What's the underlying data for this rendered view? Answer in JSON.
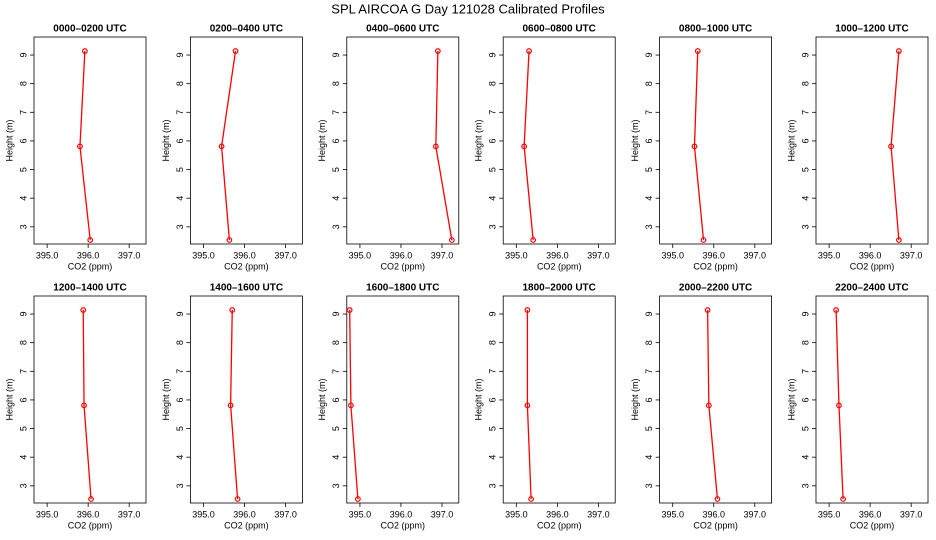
{
  "title": "SPL AIRCOA G  Day 121028  Calibrated Profiles",
  "chart_data": [
    {
      "type": "line",
      "title": "0000–0200 UTC",
      "xlabel": "CO2 (ppm)",
      "ylabel": "Height (m)",
      "color": "#ff0000",
      "x": [
        395.92,
        395.8,
        396.05
      ],
      "values": [
        9.14,
        5.81,
        2.54
      ],
      "xlim": [
        394.68,
        397.41
      ],
      "ylim": [
        2.4,
        9.63
      ],
      "xticks": [
        {
          "value": 395,
          "label": "395.0"
        },
        {
          "value": 396,
          "label": "396.0"
        },
        {
          "value": 397,
          "label": "397.0"
        }
      ],
      "yticks": [
        3,
        4,
        5,
        6,
        7,
        8,
        9
      ]
    },
    {
      "type": "line",
      "title": "0200–0400 UTC",
      "xlabel": "CO2 (ppm)",
      "ylabel": "Height (m)",
      "color": "#ff0000",
      "x": [
        395.78,
        395.44,
        395.63
      ],
      "values": [
        9.14,
        5.81,
        2.54
      ],
      "xlim": [
        394.68,
        397.41
      ],
      "ylim": [
        2.4,
        9.63
      ],
      "xticks": [
        {
          "value": 395,
          "label": "395.0"
        },
        {
          "value": 396,
          "label": "396.0"
        },
        {
          "value": 397,
          "label": "397.0"
        }
      ],
      "yticks": [
        3,
        4,
        5,
        6,
        7,
        8,
        9
      ]
    },
    {
      "type": "line",
      "title": "0400–0600 UTC",
      "xlabel": "CO2 (ppm)",
      "ylabel": "Height (m)",
      "color": "#ff0000",
      "x": [
        396.9,
        396.85,
        397.24
      ],
      "values": [
        9.14,
        5.81,
        2.54
      ],
      "xlim": [
        394.68,
        397.41
      ],
      "ylim": [
        2.4,
        9.63
      ],
      "xticks": [
        {
          "value": 395,
          "label": "395.0"
        },
        {
          "value": 396,
          "label": "396.0"
        },
        {
          "value": 397,
          "label": "397.0"
        }
      ],
      "yticks": [
        3,
        4,
        5,
        6,
        7,
        8,
        9
      ]
    },
    {
      "type": "line",
      "title": "0600–0800 UTC",
      "xlabel": "CO2 (ppm)",
      "ylabel": "Height (m)",
      "color": "#ff0000",
      "x": [
        395.31,
        395.19,
        395.41
      ],
      "values": [
        9.14,
        5.81,
        2.54
      ],
      "xlim": [
        394.68,
        397.41
      ],
      "ylim": [
        2.4,
        9.63
      ],
      "xticks": [
        {
          "value": 395,
          "label": "395.0"
        },
        {
          "value": 396,
          "label": "396.0"
        },
        {
          "value": 397,
          "label": "397.0"
        }
      ],
      "yticks": [
        3,
        4,
        5,
        6,
        7,
        8,
        9
      ]
    },
    {
      "type": "line",
      "title": "0800–1000 UTC",
      "xlabel": "CO2 (ppm)",
      "ylabel": "Height (m)",
      "color": "#ff0000",
      "x": [
        395.61,
        395.53,
        395.75
      ],
      "values": [
        9.14,
        5.81,
        2.54
      ],
      "xlim": [
        394.68,
        397.41
      ],
      "ylim": [
        2.4,
        9.63
      ],
      "xticks": [
        {
          "value": 395,
          "label": "395.0"
        },
        {
          "value": 396,
          "label": "396.0"
        },
        {
          "value": 397,
          "label": "397.0"
        }
      ],
      "yticks": [
        3,
        4,
        5,
        6,
        7,
        8,
        9
      ]
    },
    {
      "type": "line",
      "title": "1000–1200 UTC",
      "xlabel": "CO2 (ppm)",
      "ylabel": "Height (m)",
      "color": "#ff0000",
      "x": [
        396.7,
        396.51,
        396.7
      ],
      "values": [
        9.14,
        5.81,
        2.54
      ],
      "xlim": [
        394.68,
        397.41
      ],
      "ylim": [
        2.4,
        9.63
      ],
      "xticks": [
        {
          "value": 395,
          "label": "395.0"
        },
        {
          "value": 396,
          "label": "396.0"
        },
        {
          "value": 397,
          "label": "397.0"
        }
      ],
      "yticks": [
        3,
        4,
        5,
        6,
        7,
        8,
        9
      ]
    },
    {
      "type": "line",
      "title": "1200–1400 UTC",
      "xlabel": "CO2 (ppm)",
      "ylabel": "Height (m)",
      "color": "#ff0000",
      "x": [
        395.88,
        395.9,
        396.07
      ],
      "values": [
        9.14,
        5.81,
        2.54
      ],
      "xlim": [
        394.68,
        397.41
      ],
      "ylim": [
        2.4,
        9.63
      ],
      "xticks": [
        {
          "value": 395,
          "label": "395.0"
        },
        {
          "value": 396,
          "label": "396.0"
        },
        {
          "value": 397,
          "label": "397.0"
        }
      ],
      "yticks": [
        3,
        4,
        5,
        6,
        7,
        8,
        9
      ]
    },
    {
      "type": "line",
      "title": "1400–1600 UTC",
      "xlabel": "CO2 (ppm)",
      "ylabel": "Height (m)",
      "color": "#ff0000",
      "x": [
        395.7,
        395.66,
        395.83
      ],
      "values": [
        9.14,
        5.81,
        2.54
      ],
      "xlim": [
        394.68,
        397.41
      ],
      "ylim": [
        2.4,
        9.63
      ],
      "xticks": [
        {
          "value": 395,
          "label": "395.0"
        },
        {
          "value": 396,
          "label": "396.0"
        },
        {
          "value": 397,
          "label": "397.0"
        }
      ],
      "yticks": [
        3,
        4,
        5,
        6,
        7,
        8,
        9
      ]
    },
    {
      "type": "line",
      "title": "1600–1800 UTC",
      "xlabel": "CO2 (ppm)",
      "ylabel": "Height (m)",
      "color": "#ff0000",
      "x": [
        394.75,
        394.78,
        394.95
      ],
      "values": [
        9.14,
        5.81,
        2.54
      ],
      "xlim": [
        394.68,
        397.41
      ],
      "ylim": [
        2.4,
        9.63
      ],
      "xticks": [
        {
          "value": 395,
          "label": "395.0"
        },
        {
          "value": 396,
          "label": "396.0"
        },
        {
          "value": 397,
          "label": "397.0"
        }
      ],
      "yticks": [
        3,
        4,
        5,
        6,
        7,
        8,
        9
      ]
    },
    {
      "type": "line",
      "title": "1800–2000 UTC",
      "xlabel": "CO2 (ppm)",
      "ylabel": "Height (m)",
      "color": "#ff0000",
      "x": [
        395.27,
        395.27,
        395.36
      ],
      "values": [
        9.14,
        5.81,
        2.54
      ],
      "xlim": [
        394.68,
        397.41
      ],
      "ylim": [
        2.4,
        9.63
      ],
      "xticks": [
        {
          "value": 395,
          "label": "395.0"
        },
        {
          "value": 396,
          "label": "396.0"
        },
        {
          "value": 397,
          "label": "397.0"
        }
      ],
      "yticks": [
        3,
        4,
        5,
        6,
        7,
        8,
        9
      ]
    },
    {
      "type": "line",
      "title": "2000–2200 UTC",
      "xlabel": "CO2 (ppm)",
      "ylabel": "Height (m)",
      "color": "#ff0000",
      "x": [
        395.85,
        395.88,
        396.09
      ],
      "values": [
        9.14,
        5.81,
        2.54
      ],
      "xlim": [
        394.68,
        397.41
      ],
      "ylim": [
        2.4,
        9.63
      ],
      "xticks": [
        {
          "value": 395,
          "label": "395.0"
        },
        {
          "value": 396,
          "label": "396.0"
        },
        {
          "value": 397,
          "label": "397.0"
        }
      ],
      "yticks": [
        3,
        4,
        5,
        6,
        7,
        8,
        9
      ]
    },
    {
      "type": "line",
      "title": "2200–2400 UTC",
      "xlabel": "CO2 (ppm)",
      "ylabel": "Height (m)",
      "color": "#ff0000",
      "x": [
        395.17,
        395.24,
        395.34
      ],
      "values": [
        9.14,
        5.81,
        2.54
      ],
      "xlim": [
        394.68,
        397.41
      ],
      "ylim": [
        2.4,
        9.63
      ],
      "xticks": [
        {
          "value": 395,
          "label": "395.0"
        },
        {
          "value": 396,
          "label": "396.0"
        },
        {
          "value": 397,
          "label": "397.0"
        }
      ],
      "yticks": [
        3,
        4,
        5,
        6,
        7,
        8,
        9
      ]
    }
  ]
}
